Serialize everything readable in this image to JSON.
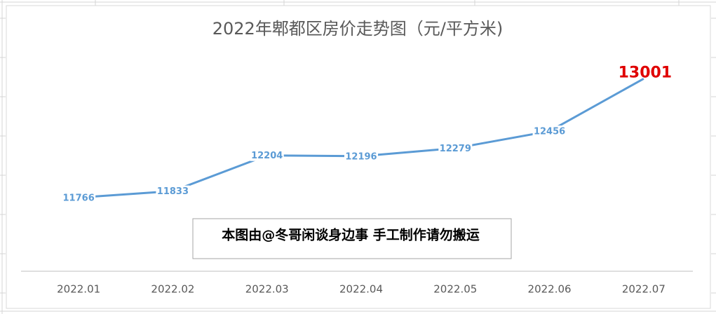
{
  "chart_data": {
    "type": "line",
    "title": "2022年郫都区房价走势图（元/平方米)",
    "annotation": "本图由@冬哥闲谈身边事 手工制作请勿搬运",
    "categories": [
      "2022.01",
      "2022.02",
      "2022.03",
      "2022.04",
      "2022.05",
      "2022.06",
      "2022.07"
    ],
    "values": [
      11766,
      11833,
      12204,
      12196,
      12279,
      12456,
      13001
    ],
    "color": "#5b9bd5",
    "highlight_color": "#e00000",
    "ylim": [
      11000,
      13200
    ]
  }
}
